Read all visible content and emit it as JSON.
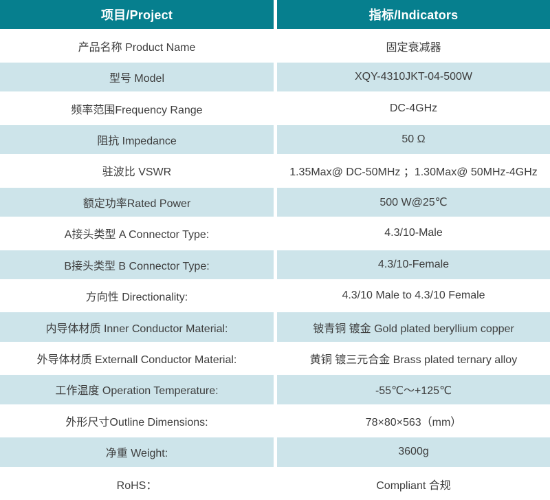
{
  "theme": {
    "header_bg": "#067f8e",
    "header_text": "#ffffff",
    "row_bg": "#ffffff",
    "row_alt_bg": "#cde4ea",
    "body_text": "#3d3d3d",
    "divider": "#ffffff"
  },
  "table": {
    "columns": [
      {
        "label": "项目/Project"
      },
      {
        "label": "指标/Indicators"
      }
    ],
    "rows": [
      {
        "project": "产品名称 Product Name",
        "indicator": "固定衰减器"
      },
      {
        "project": "型号 Model",
        "indicator": "XQY-4310JKT-04-500W"
      },
      {
        "project": "频率范围Frequency Range",
        "indicator": "DC-4GHz"
      },
      {
        "project": "阻抗 Impedance",
        "indicator": "50 Ω"
      },
      {
        "project": "驻波比 VSWR",
        "indicator": "1.35Max@ DC-50MHz ；1.30Max@ 50MHz-4GHz"
      },
      {
        "project": "额定功率Rated Power",
        "indicator": "500 W@25℃"
      },
      {
        "project": "A接头类型 A Connector Type:",
        "indicator": "4.3/10-Male"
      },
      {
        "project": "B接头类型 B Connector Type:",
        "indicator": "4.3/10-Female"
      },
      {
        "project": "方向性 Directionality:",
        "indicator": "4.3/10 Male to 4.3/10 Female"
      },
      {
        "project": "内导体材质 Inner Conductor Material:",
        "indicator": "铍青铜 镀金 Gold plated beryllium copper"
      },
      {
        "project": "外导体材质 Externall Conductor Material:",
        "indicator": "黄铜 镀三元合金 Brass plated ternary alloy"
      },
      {
        "project": "工作温度 Operation Temperature:",
        "indicator": "-55℃～+125℃"
      },
      {
        "project": "外形尺寸Outline Dimensions:",
        "indicator": "78×80×563（mm）"
      },
      {
        "project": "净重 Weight:",
        "indicator": "3600g"
      },
      {
        "project": "RoHS：",
        "indicator": "Compliant 合规"
      }
    ]
  }
}
